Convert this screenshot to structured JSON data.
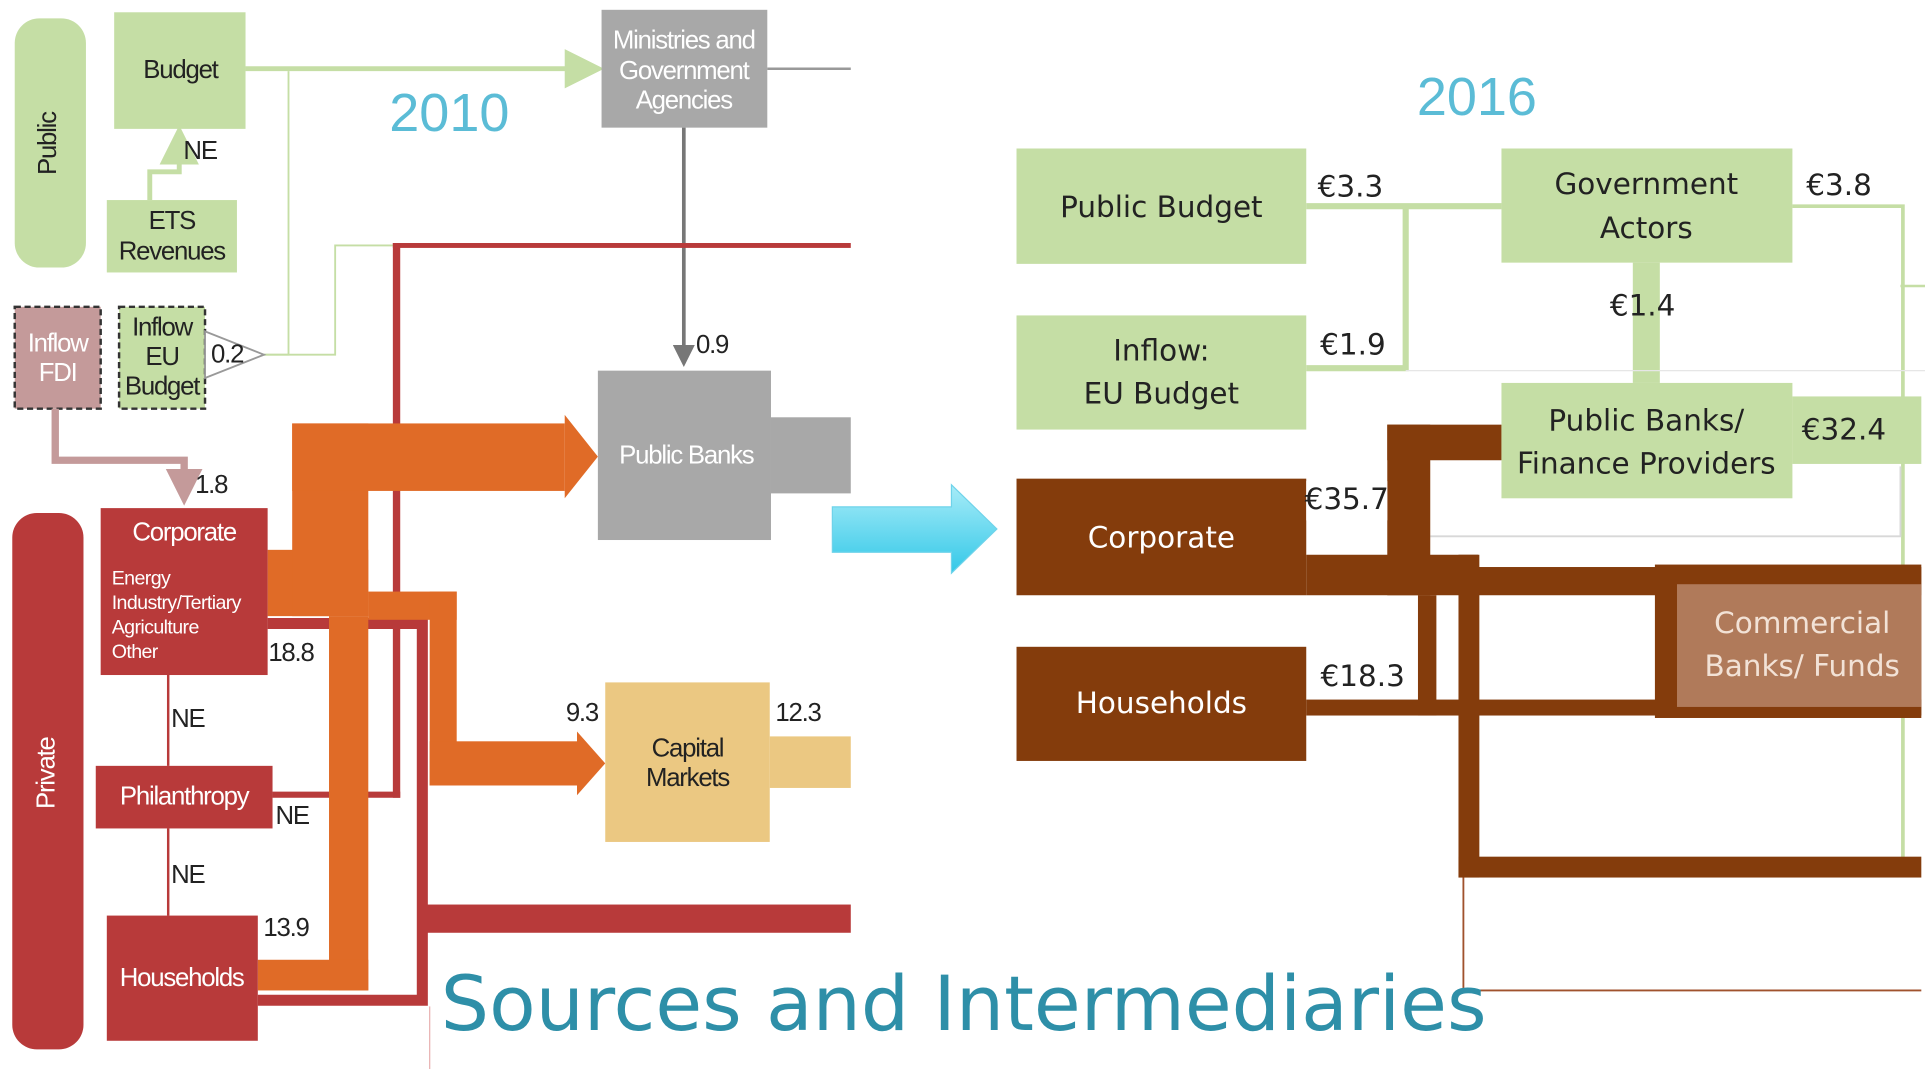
{
  "title": "Sources and Intermediaries",
  "left": {
    "year": "2010",
    "nodes": {
      "public": "Public",
      "budget": "Budget",
      "ets": [
        "ETS",
        "Revenues"
      ],
      "ministries": [
        "Ministries and",
        "Government",
        "Agencies"
      ],
      "inflow_fdi": [
        "Inflow",
        "FDI"
      ],
      "inflow_eu": [
        "Inflow",
        "EU",
        "Budget"
      ],
      "public_banks": "Public Banks",
      "corporate": "Corporate",
      "corporate_sectors": [
        "Energy",
        "Industry/Tertiary",
        "Agriculture",
        "Other"
      ],
      "philanthropy": "Philanthropy",
      "households": "Households",
      "private": "Private",
      "capital_markets": [
        "Capital",
        "Markets"
      ]
    },
    "flows": {
      "ets_budget": "NE",
      "eu_budget": "0.2",
      "ministries_banks": "0.9",
      "fdi_corporate": "1.8",
      "corporate_out": "18.8",
      "corporate_philanthropy": "NE",
      "philanthropy_out": "NE",
      "philanthropy_households": "NE",
      "households_out": "13.9",
      "capital_in": "9.3",
      "capital_out": "12.3"
    }
  },
  "right": {
    "year": "2016",
    "nodes": {
      "public_budget": "Public Budget",
      "government_actors": [
        "Government",
        "Actors"
      ],
      "inflow_eu": [
        "Inflow:",
        "EU Budget"
      ],
      "public_banks": [
        "Public Banks/",
        "Finance Providers"
      ],
      "corporate": "Corporate",
      "commercial_banks": [
        "Commercial",
        "Banks/ Funds"
      ],
      "households": "Households"
    },
    "flows": {
      "public_budget": "€3.3",
      "government_out": "€3.8",
      "government_banks": "€1.4",
      "inflow_eu": "€1.9",
      "public_banks_out": "€32.4",
      "corporate": "€35.7",
      "households": "€18.3"
    }
  }
}
